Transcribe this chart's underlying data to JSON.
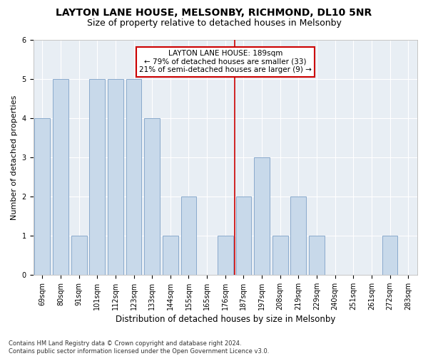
{
  "title": "LAYTON LANE HOUSE, MELSONBY, RICHMOND, DL10 5NR",
  "subtitle": "Size of property relative to detached houses in Melsonby",
  "xlabel": "Distribution of detached houses by size in Melsonby",
  "ylabel": "Number of detached properties",
  "categories": [
    "69sqm",
    "80sqm",
    "91sqm",
    "101sqm",
    "112sqm",
    "123sqm",
    "133sqm",
    "144sqm",
    "155sqm",
    "165sqm",
    "176sqm",
    "187sqm",
    "197sqm",
    "208sqm",
    "219sqm",
    "229sqm",
    "240sqm",
    "251sqm",
    "261sqm",
    "272sqm",
    "283sqm"
  ],
  "values": [
    4,
    5,
    1,
    5,
    5,
    5,
    4,
    1,
    2,
    0,
    1,
    2,
    3,
    1,
    2,
    1,
    0,
    0,
    0,
    1,
    0
  ],
  "bar_color": "#c8d9ea",
  "bar_edge_color": "#8aaacc",
  "vline_index": 11.5,
  "vline_color": "#cc0000",
  "annotation_text": "LAYTON LANE HOUSE: 189sqm\n← 79% of detached houses are smaller (33)\n21% of semi-detached houses are larger (9) →",
  "annotation_box_color": "#cc0000",
  "ylim": [
    0,
    6
  ],
  "yticks": [
    0,
    1,
    2,
    3,
    4,
    5,
    6
  ],
  "ax_bg_color": "#e8eef4",
  "fig_bg_color": "#ffffff",
  "footer_line1": "Contains HM Land Registry data © Crown copyright and database right 2024.",
  "footer_line2": "Contains public sector information licensed under the Open Government Licence v3.0.",
  "title_fontsize": 10,
  "subtitle_fontsize": 9,
  "xlabel_fontsize": 8.5,
  "ylabel_fontsize": 8,
  "tick_fontsize": 7,
  "annotation_fontsize": 7.5,
  "footer_fontsize": 6
}
